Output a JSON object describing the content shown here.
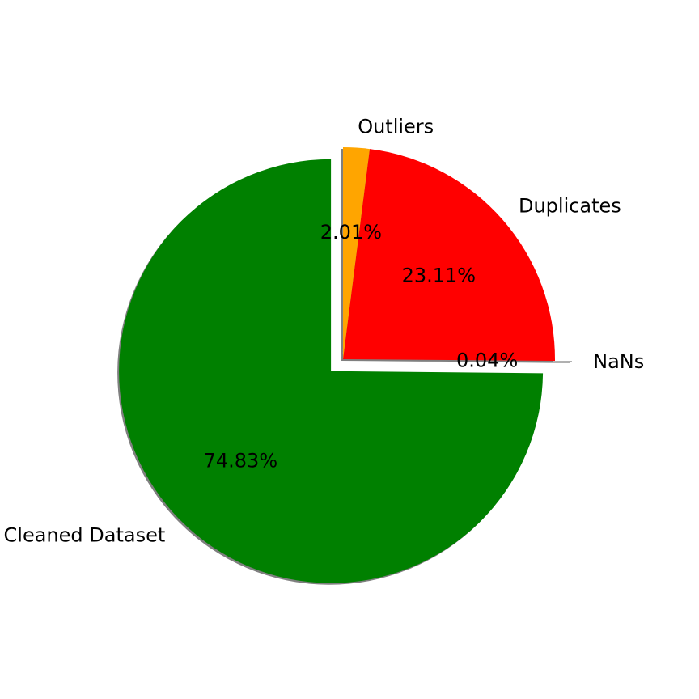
{
  "chart_data": {
    "type": "pie",
    "slices": [
      {
        "label": "Cleaned Dataset",
        "value": 74.83,
        "pct_label": "74.83%",
        "color": "#008000",
        "exploded": true
      },
      {
        "label": "NaNs",
        "value": 0.04,
        "pct_label": "0.04%",
        "color": "#808080",
        "exploded": true
      },
      {
        "label": "Duplicates",
        "value": 23.11,
        "pct_label": "23.11%",
        "color": "#ff0000",
        "exploded": false
      },
      {
        "label": "Outliers",
        "value": 2.01,
        "pct_label": "2.01%",
        "color": "#ffa500",
        "exploded": false
      }
    ],
    "start_angle_deg": 90,
    "direction": "counterclockwise",
    "shadow": true
  }
}
